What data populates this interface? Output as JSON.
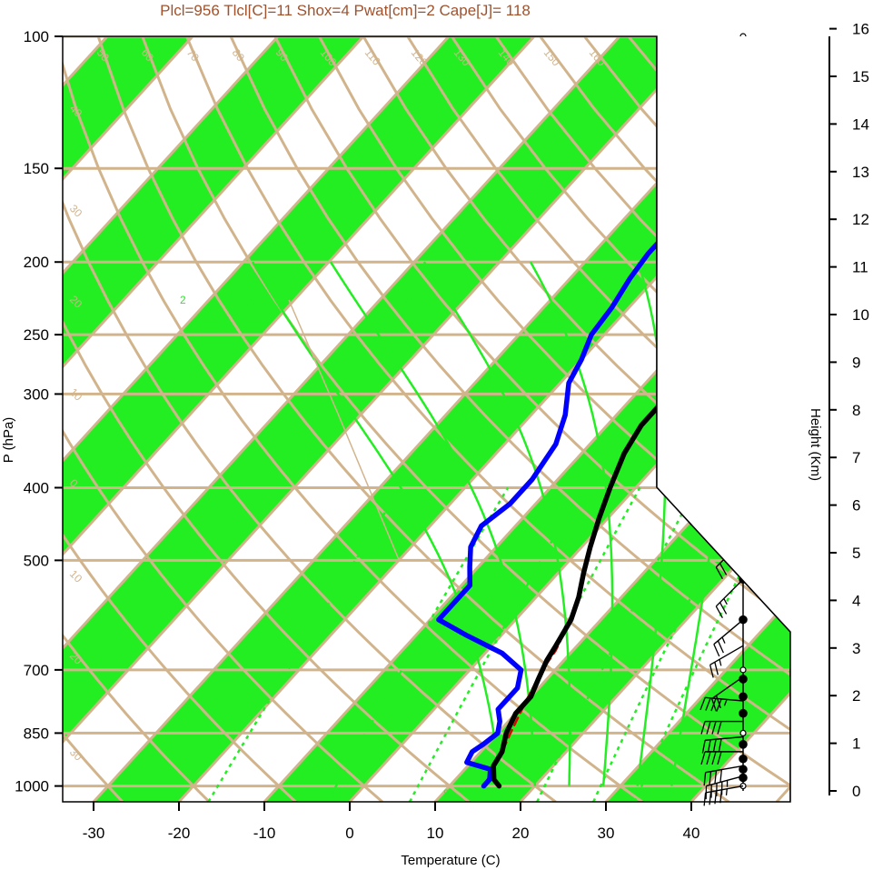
{
  "title": "Plcl=956 Tlcl[C]=11 Shox=4 Pwat[cm]=2 Cape[J]= 118",
  "colors": {
    "band": "#22ee22",
    "tan": "#d2b48c",
    "title": "#a0522d",
    "temperature": "#000000",
    "dewpoint": "#0000ff",
    "parcel": "#dd0000",
    "mixing": "#22ee22"
  },
  "chart_data": {
    "type": "line",
    "xlabel": "Temperature (C)",
    "ylabel": "P (hPa)",
    "y2label": "Height (Km)",
    "xlim": [
      -35,
      40
    ],
    "ylim": [
      1050,
      100
    ],
    "x_ticks": [
      "-30",
      "-20",
      "-10",
      "0",
      "10",
      "20",
      "30",
      "40"
    ],
    "y_ticks": [
      "100",
      "150",
      "200",
      "250",
      "300",
      "400",
      "500",
      "700",
      "850",
      "1000"
    ],
    "height_ticks": [
      "0",
      "1",
      "2",
      "3",
      "4",
      "5",
      "6",
      "7",
      "8",
      "9",
      "10",
      "11",
      "12",
      "13",
      "14",
      "15",
      "16"
    ],
    "series": [
      {
        "name": "temperature",
        "points": [
          [
            15.8,
            1000
          ],
          [
            14.5,
            980
          ],
          [
            13,
            940
          ],
          [
            12.5,
            900
          ],
          [
            11,
            850
          ],
          [
            10,
            800
          ],
          [
            10,
            760
          ],
          [
            9,
            720
          ],
          [
            8,
            680
          ],
          [
            7.5,
            650
          ],
          [
            6.5,
            600
          ],
          [
            5,
            560
          ],
          [
            3,
            520
          ],
          [
            1,
            480
          ],
          [
            -1,
            440
          ],
          [
            -3,
            400
          ],
          [
            -5,
            360
          ],
          [
            -6,
            330
          ],
          [
            -6,
            300
          ],
          [
            -5,
            280
          ],
          [
            -4,
            260
          ],
          [
            -2,
            245
          ],
          [
            0,
            230
          ],
          [
            3,
            215
          ],
          [
            5,
            200
          ],
          [
            6,
            185
          ],
          [
            7,
            170
          ],
          [
            8,
            155
          ],
          [
            9.5,
            145
          ],
          [
            11,
            135
          ],
          [
            12.5,
            125
          ],
          [
            14,
            118
          ],
          [
            15.5,
            112
          ],
          [
            17,
            108
          ]
        ]
      },
      {
        "name": "dewpoint",
        "points": [
          [
            14,
            1000
          ],
          [
            14,
            980
          ],
          [
            13,
            950
          ],
          [
            9.5,
            930
          ],
          [
            9,
            900
          ],
          [
            9.5,
            880
          ],
          [
            10,
            850
          ],
          [
            9,
            820
          ],
          [
            7.5,
            790
          ],
          [
            7.5,
            740
          ],
          [
            6,
            700
          ],
          [
            2,
            665
          ],
          [
            -4,
            630
          ],
          [
            -9,
            600
          ],
          [
            -9,
            570
          ],
          [
            -9,
            540
          ],
          [
            -11,
            510
          ],
          [
            -13,
            480
          ],
          [
            -14,
            450
          ],
          [
            -13,
            420
          ],
          [
            -13,
            390
          ],
          [
            -14,
            350
          ],
          [
            -16,
            320
          ],
          [
            -19,
            290
          ],
          [
            -20,
            270
          ],
          [
            -21.5,
            250
          ],
          [
            -22,
            230
          ],
          [
            -23,
            210
          ],
          [
            -23.5,
            195
          ],
          [
            -23.5,
            180
          ],
          [
            -23,
            168
          ],
          [
            -21,
            160
          ],
          [
            -19,
            150
          ],
          [
            -16,
            138
          ],
          [
            -13,
            126
          ],
          [
            -10,
            115
          ],
          [
            -8,
            108
          ]
        ]
      },
      {
        "name": "parcel",
        "points": [
          [
            14,
            1000
          ],
          [
            13.5,
            960
          ],
          [
            12.5,
            900
          ],
          [
            11.5,
            850
          ],
          [
            10.5,
            800
          ],
          [
            9.5,
            750
          ],
          [
            8.5,
            700
          ],
          [
            8,
            660
          ],
          [
            7.5,
            640
          ]
        ]
      }
    ],
    "dry_adiabat_labels": [
      "50",
      "60",
      "70",
      "80",
      "90",
      "100",
      "110",
      "120",
      "130",
      "140",
      "150",
      "160"
    ],
    "mixing_ratio_labels": [
      "2",
      "16",
      "24",
      "32",
      "3",
      "8"
    ],
    "isotherm_labels": [
      "30",
      "20",
      "10",
      "0",
      "10",
      "20",
      "30"
    ],
    "left_labels": [
      "40",
      "30",
      "20",
      "10",
      "0",
      "10",
      "20",
      "30"
    ],
    "wind_barbs": [
      {
        "p": 115,
        "dir": 270,
        "spd": 45
      },
      {
        "p": 145,
        "dir": 275,
        "spd": 55
      },
      {
        "p": 175,
        "dir": 275,
        "spd": 55
      },
      {
        "p": 210,
        "dir": 275,
        "spd": 55
      },
      {
        "p": 245,
        "dir": 270,
        "spd": 50
      },
      {
        "p": 290,
        "dir": 265,
        "spd": 35
      },
      {
        "p": 340,
        "dir": 265,
        "spd": 30
      },
      {
        "p": 400,
        "dir": 245,
        "spd": 25
      },
      {
        "p": 470,
        "dir": 225,
        "spd": 20
      },
      {
        "p": 530,
        "dir": 225,
        "spd": 25
      },
      {
        "p": 600,
        "dir": 230,
        "spd": 25
      },
      {
        "p": 650,
        "dir": 240,
        "spd": 25
      },
      {
        "p": 715,
        "dir": 235,
        "spd": 20
      },
      {
        "p": 770,
        "dir": 275,
        "spd": 45
      },
      {
        "p": 820,
        "dir": 270,
        "spd": 40
      },
      {
        "p": 860,
        "dir": 265,
        "spd": 40
      },
      {
        "p": 900,
        "dir": 270,
        "spd": 40
      },
      {
        "p": 940,
        "dir": 260,
        "spd": 40
      },
      {
        "p": 970,
        "dir": 255,
        "spd": 45
      },
      {
        "p": 1000,
        "dir": 260,
        "spd": 45
      }
    ],
    "height_points": [
      {
        "p": 100,
        "km": 16.2,
        "open": true
      },
      {
        "p": 115,
        "km": 15.2,
        "open": false
      },
      {
        "p": 145,
        "km": 13.9,
        "open": false
      },
      {
        "p": 150,
        "km": 13.7,
        "open": true
      },
      {
        "p": 185,
        "km": 12.2,
        "open": false
      },
      {
        "p": 200,
        "km": 11.8,
        "open": true
      },
      {
        "p": 240,
        "km": 10.7,
        "open": false
      },
      {
        "p": 250,
        "km": 10.4,
        "open": true
      },
      {
        "p": 300,
        "km": 9.1,
        "open": false
      },
      {
        "p": 375,
        "km": 7.5,
        "open": false
      },
      {
        "p": 400,
        "km": 7.0,
        "open": true
      },
      {
        "p": 480,
        "km": 5.6,
        "open": false
      },
      {
        "p": 500,
        "km": 5.2,
        "open": true
      },
      {
        "p": 530,
        "km": 5.0,
        "open": false
      },
      {
        "p": 600,
        "km": 4.2,
        "open": false
      },
      {
        "p": 700,
        "km": 3.0,
        "open": true
      },
      {
        "p": 720,
        "km": 2.9,
        "open": false
      },
      {
        "p": 760,
        "km": 2.5,
        "open": false
      },
      {
        "p": 800,
        "km": 2.0,
        "open": false
      },
      {
        "p": 850,
        "km": 1.5,
        "open": true
      },
      {
        "p": 880,
        "km": 1.2,
        "open": false
      },
      {
        "p": 920,
        "km": 0.8,
        "open": false
      },
      {
        "p": 950,
        "km": 0.5,
        "open": false
      },
      {
        "p": 975,
        "km": 0.3,
        "open": false
      },
      {
        "p": 1000,
        "km": 0.1,
        "open": true
      }
    ]
  }
}
